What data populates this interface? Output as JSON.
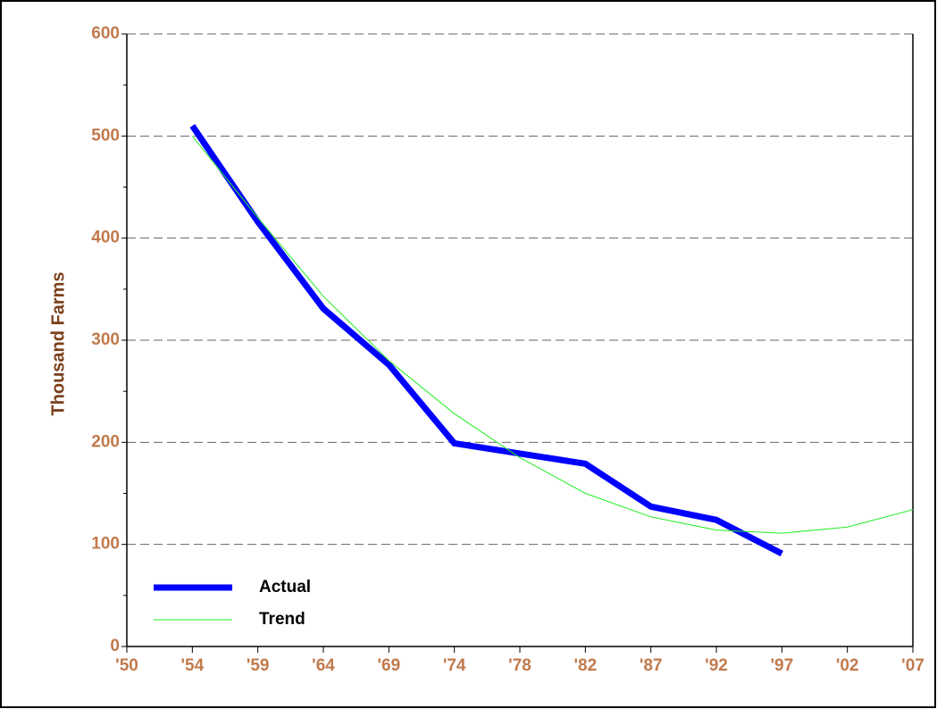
{
  "chart_data": {
    "type": "line",
    "ylabel": "Thousand Farms",
    "categories": [
      "'50",
      "'54",
      "'59",
      "'64",
      "'69",
      "'74",
      "'78",
      "'82",
      "'87",
      "'92",
      "'97",
      "'02",
      "'07"
    ],
    "series": [
      {
        "name": "Actual",
        "color": "#0000ff",
        "width": 7,
        "values": [
          null,
          510,
          416,
          331,
          276,
          199,
          189,
          179,
          137,
          124,
          91,
          null,
          null
        ]
      },
      {
        "name": "Trend",
        "color": "#22ee22",
        "width": 1,
        "values": [
          null,
          500,
          420,
          343,
          280,
          228,
          185,
          150,
          127,
          114,
          111,
          117,
          134
        ]
      }
    ],
    "ylim": [
      0,
      600
    ],
    "yticks": [
      0,
      100,
      200,
      300,
      400,
      500,
      600
    ],
    "minor_yticks": [
      50,
      150,
      250,
      350,
      450,
      550
    ],
    "grid": true,
    "legend": "lower-left",
    "label_color": "#c27a4c"
  }
}
